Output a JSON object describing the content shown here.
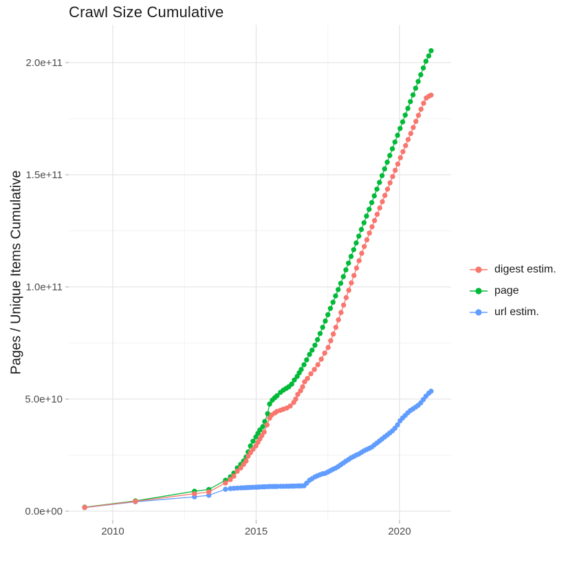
{
  "title": "Crawl Size Cumulative",
  "legend": {
    "items": [
      {
        "label": "digest estim.",
        "color": "#F8766D"
      },
      {
        "label": "page",
        "color": "#00BA38"
      },
      {
        "label": "url estim.",
        "color": "#619CFF"
      }
    ]
  },
  "chart_data": {
    "type": "scatter",
    "title": "Crawl Size Cumulative",
    "xlabel": "",
    "ylabel": "Pages / Unique Items Cumulative",
    "x_ticks": [
      2010,
      2015,
      2020
    ],
    "x_minor_ticks": [
      2012.5,
      2017.5
    ],
    "y_ticks_e9": [
      0,
      50,
      100,
      150,
      200
    ],
    "y_tick_labels": [
      "0.0e+00",
      "5.0e+10",
      "1.0e+11",
      "1.5e+11",
      "2.0e+11"
    ],
    "y_minor_ticks_e9": [
      25,
      75,
      125,
      175
    ],
    "x_range": [
      2008.4,
      2021.8
    ],
    "y_range_e9": [
      -4,
      217
    ],
    "grid": true,
    "legend_position": "right",
    "unit": "cumulative items; values stored in billions (1e9)",
    "series": [
      {
        "name": "digest estim.",
        "color": "#F8766D",
        "z": 3,
        "points_year_value_e9": [
          [
            2009.02,
            1.7
          ],
          [
            2010.79,
            4.4
          ],
          [
            2012.85,
            7.8
          ],
          [
            2013.35,
            8.6
          ],
          [
            2013.93,
            12.6
          ],
          [
            2014.1,
            14.1
          ],
          [
            2014.22,
            15.6
          ],
          [
            2014.34,
            17.8
          ],
          [
            2014.46,
            19.3
          ],
          [
            2014.56,
            20.9
          ],
          [
            2014.65,
            22.4
          ],
          [
            2014.72,
            24.5
          ],
          [
            2014.8,
            26.1
          ],
          [
            2014.89,
            27.6
          ],
          [
            2014.99,
            29.1
          ],
          [
            2015.06,
            30.7
          ],
          [
            2015.13,
            32.2
          ],
          [
            2015.2,
            33.7
          ],
          [
            2015.28,
            35.3
          ],
          [
            2015.38,
            38.5
          ],
          [
            2015.47,
            41.5
          ],
          [
            2015.54,
            42.9
          ],
          [
            2015.65,
            43.8
          ],
          [
            2015.73,
            44.5
          ],
          [
            2015.85,
            45.0
          ],
          [
            2015.95,
            45.5
          ],
          [
            2016.07,
            46.0
          ],
          [
            2016.19,
            46.9
          ],
          [
            2016.31,
            48.5
          ],
          [
            2016.38,
            50.0
          ],
          [
            2016.45,
            52.1
          ],
          [
            2016.55,
            53.7
          ],
          [
            2016.62,
            55.5
          ],
          [
            2016.69,
            57.7
          ],
          [
            2016.79,
            59.2
          ],
          [
            2016.91,
            61.3
          ],
          [
            2017.03,
            63.2
          ],
          [
            2017.15,
            65.3
          ],
          [
            2017.27,
            67.8
          ],
          [
            2017.39,
            70.5
          ],
          [
            2017.51,
            73.0
          ],
          [
            2017.6,
            76.0
          ],
          [
            2017.69,
            79.0
          ],
          [
            2017.78,
            82.0
          ],
          [
            2017.87,
            85.3
          ],
          [
            2017.96,
            88.6
          ],
          [
            2018.05,
            91.9
          ],
          [
            2018.14,
            95.2
          ],
          [
            2018.23,
            98.5
          ],
          [
            2018.32,
            101.8
          ],
          [
            2018.41,
            105.1
          ],
          [
            2018.5,
            108.4
          ],
          [
            2018.59,
            111.7
          ],
          [
            2018.68,
            115.0
          ],
          [
            2018.77,
            118.0
          ],
          [
            2018.86,
            121.0
          ],
          [
            2018.95,
            124.0
          ],
          [
            2019.04,
            126.8
          ],
          [
            2019.13,
            129.6
          ],
          [
            2019.22,
            132.4
          ],
          [
            2019.31,
            135.2
          ],
          [
            2019.4,
            138.0
          ],
          [
            2019.49,
            140.8
          ],
          [
            2019.58,
            143.6
          ],
          [
            2019.67,
            146.4
          ],
          [
            2019.76,
            149.2
          ],
          [
            2019.85,
            152.0
          ],
          [
            2019.94,
            154.8
          ],
          [
            2020.03,
            157.6
          ],
          [
            2020.12,
            160.3
          ],
          [
            2020.21,
            163.0
          ],
          [
            2020.3,
            165.7
          ],
          [
            2020.39,
            168.4
          ],
          [
            2020.48,
            171.1
          ],
          [
            2020.57,
            173.8
          ],
          [
            2020.66,
            176.5
          ],
          [
            2020.75,
            179.2
          ],
          [
            2020.84,
            181.9
          ],
          [
            2020.93,
            184.2
          ],
          [
            2021.02,
            185.0
          ],
          [
            2021.1,
            185.5
          ]
        ]
      },
      {
        "name": "page",
        "color": "#00BA38",
        "z": 1,
        "points_year_value_e9": [
          [
            2009.02,
            1.8
          ],
          [
            2010.79,
            4.6
          ],
          [
            2012.85,
            8.9
          ],
          [
            2013.35,
            9.7
          ],
          [
            2013.93,
            13.8
          ],
          [
            2014.1,
            15.3
          ],
          [
            2014.22,
            17.0
          ],
          [
            2014.34,
            19.3
          ],
          [
            2014.46,
            20.9
          ],
          [
            2014.56,
            22.4
          ],
          [
            2014.65,
            24.2
          ],
          [
            2014.72,
            26.4
          ],
          [
            2014.8,
            29.1
          ],
          [
            2014.89,
            31.2
          ],
          [
            2014.99,
            33.1
          ],
          [
            2015.06,
            34.7
          ],
          [
            2015.13,
            36.2
          ],
          [
            2015.23,
            37.7
          ],
          [
            2015.3,
            40.0
          ],
          [
            2015.4,
            43.5
          ],
          [
            2015.47,
            47.8
          ],
          [
            2015.56,
            49.5
          ],
          [
            2015.65,
            50.6
          ],
          [
            2015.73,
            51.5
          ],
          [
            2015.85,
            53.0
          ],
          [
            2015.95,
            54.0
          ],
          [
            2016.05,
            54.8
          ],
          [
            2016.14,
            55.5
          ],
          [
            2016.24,
            56.7
          ],
          [
            2016.33,
            58.5
          ],
          [
            2016.43,
            60.1
          ],
          [
            2016.5,
            61.7
          ],
          [
            2016.57,
            63.2
          ],
          [
            2016.67,
            65.3
          ],
          [
            2016.76,
            67.5
          ],
          [
            2016.86,
            69.9
          ],
          [
            2016.95,
            71.8
          ],
          [
            2017.05,
            74.0
          ],
          [
            2017.14,
            76.5
          ],
          [
            2017.23,
            79.2
          ],
          [
            2017.32,
            82.0
          ],
          [
            2017.41,
            84.8
          ],
          [
            2017.5,
            87.6
          ],
          [
            2017.59,
            90.4
          ],
          [
            2017.68,
            93.2
          ],
          [
            2017.77,
            96.0
          ],
          [
            2017.86,
            98.8
          ],
          [
            2017.95,
            101.6
          ],
          [
            2018.04,
            104.6
          ],
          [
            2018.13,
            107.6
          ],
          [
            2018.22,
            110.6
          ],
          [
            2018.31,
            113.6
          ],
          [
            2018.4,
            116.6
          ],
          [
            2018.49,
            119.6
          ],
          [
            2018.58,
            122.6
          ],
          [
            2018.67,
            125.6
          ],
          [
            2018.76,
            128.6
          ],
          [
            2018.85,
            131.6
          ],
          [
            2018.94,
            134.6
          ],
          [
            2019.03,
            137.6
          ],
          [
            2019.12,
            140.6
          ],
          [
            2019.21,
            143.6
          ],
          [
            2019.3,
            146.6
          ],
          [
            2019.39,
            149.6
          ],
          [
            2019.48,
            152.6
          ],
          [
            2019.57,
            155.6
          ],
          [
            2019.66,
            158.6
          ],
          [
            2019.75,
            161.6
          ],
          [
            2019.84,
            164.6
          ],
          [
            2019.93,
            167.6
          ],
          [
            2020.02,
            170.6
          ],
          [
            2020.11,
            173.6
          ],
          [
            2020.2,
            176.6
          ],
          [
            2020.29,
            179.6
          ],
          [
            2020.38,
            182.6
          ],
          [
            2020.47,
            185.6
          ],
          [
            2020.56,
            188.6
          ],
          [
            2020.65,
            191.6
          ],
          [
            2020.74,
            194.6
          ],
          [
            2020.83,
            197.6
          ],
          [
            2020.92,
            200.6
          ],
          [
            2021.02,
            203.0
          ],
          [
            2021.1,
            205.3
          ]
        ]
      },
      {
        "name": "url estim.",
        "color": "#619CFF",
        "z": 2,
        "points_year_value_e9": [
          [
            2009.02,
            1.6
          ],
          [
            2010.79,
            4.2
          ],
          [
            2012.85,
            6.4
          ],
          [
            2013.35,
            7.1
          ],
          [
            2013.93,
            9.8
          ],
          [
            2014.1,
            10.1
          ],
          [
            2014.22,
            10.2
          ],
          [
            2014.34,
            10.3
          ],
          [
            2014.46,
            10.4
          ],
          [
            2014.56,
            10.45
          ],
          [
            2014.65,
            10.5
          ],
          [
            2014.72,
            10.55
          ],
          [
            2014.8,
            10.6
          ],
          [
            2014.89,
            10.65
          ],
          [
            2014.99,
            10.7
          ],
          [
            2015.06,
            10.75
          ],
          [
            2015.13,
            10.8
          ],
          [
            2015.23,
            10.85
          ],
          [
            2015.3,
            10.9
          ],
          [
            2015.4,
            10.95
          ],
          [
            2015.47,
            11.0
          ],
          [
            2015.56,
            11.0
          ],
          [
            2015.65,
            11.05
          ],
          [
            2015.73,
            11.05
          ],
          [
            2015.85,
            11.1
          ],
          [
            2015.95,
            11.1
          ],
          [
            2016.05,
            11.15
          ],
          [
            2016.14,
            11.15
          ],
          [
            2016.24,
            11.2
          ],
          [
            2016.33,
            11.2
          ],
          [
            2016.43,
            11.25
          ],
          [
            2016.5,
            11.3
          ],
          [
            2016.57,
            11.3
          ],
          [
            2016.67,
            11.35
          ],
          [
            2016.76,
            12.5
          ],
          [
            2016.86,
            13.8
          ],
          [
            2016.95,
            14.5
          ],
          [
            2017.05,
            15.3
          ],
          [
            2017.14,
            15.8
          ],
          [
            2017.23,
            16.3
          ],
          [
            2017.32,
            16.7
          ],
          [
            2017.41,
            16.9
          ],
          [
            2017.5,
            17.5
          ],
          [
            2017.59,
            18.1
          ],
          [
            2017.68,
            18.7
          ],
          [
            2017.77,
            19.2
          ],
          [
            2017.86,
            19.9
          ],
          [
            2017.95,
            20.7
          ],
          [
            2018.04,
            21.5
          ],
          [
            2018.13,
            22.3
          ],
          [
            2018.22,
            23.0
          ],
          [
            2018.31,
            23.8
          ],
          [
            2018.4,
            24.4
          ],
          [
            2018.49,
            25.0
          ],
          [
            2018.58,
            25.5
          ],
          [
            2018.67,
            26.2
          ],
          [
            2018.76,
            26.9
          ],
          [
            2018.85,
            27.5
          ],
          [
            2018.94,
            28.0
          ],
          [
            2019.03,
            28.6
          ],
          [
            2019.12,
            29.5
          ],
          [
            2019.21,
            30.4
          ],
          [
            2019.3,
            31.3
          ],
          [
            2019.39,
            32.2
          ],
          [
            2019.48,
            33.1
          ],
          [
            2019.57,
            34.0
          ],
          [
            2019.66,
            34.9
          ],
          [
            2019.75,
            35.8
          ],
          [
            2019.84,
            37.0
          ],
          [
            2019.93,
            38.5
          ],
          [
            2020.02,
            40.3
          ],
          [
            2020.11,
            41.6
          ],
          [
            2020.2,
            42.7
          ],
          [
            2020.29,
            43.9
          ],
          [
            2020.38,
            44.9
          ],
          [
            2020.47,
            45.6
          ],
          [
            2020.56,
            46.4
          ],
          [
            2020.65,
            47.2
          ],
          [
            2020.74,
            48.3
          ],
          [
            2020.83,
            49.8
          ],
          [
            2020.92,
            51.3
          ],
          [
            2021.02,
            52.6
          ],
          [
            2021.1,
            53.5
          ]
        ]
      }
    ]
  }
}
